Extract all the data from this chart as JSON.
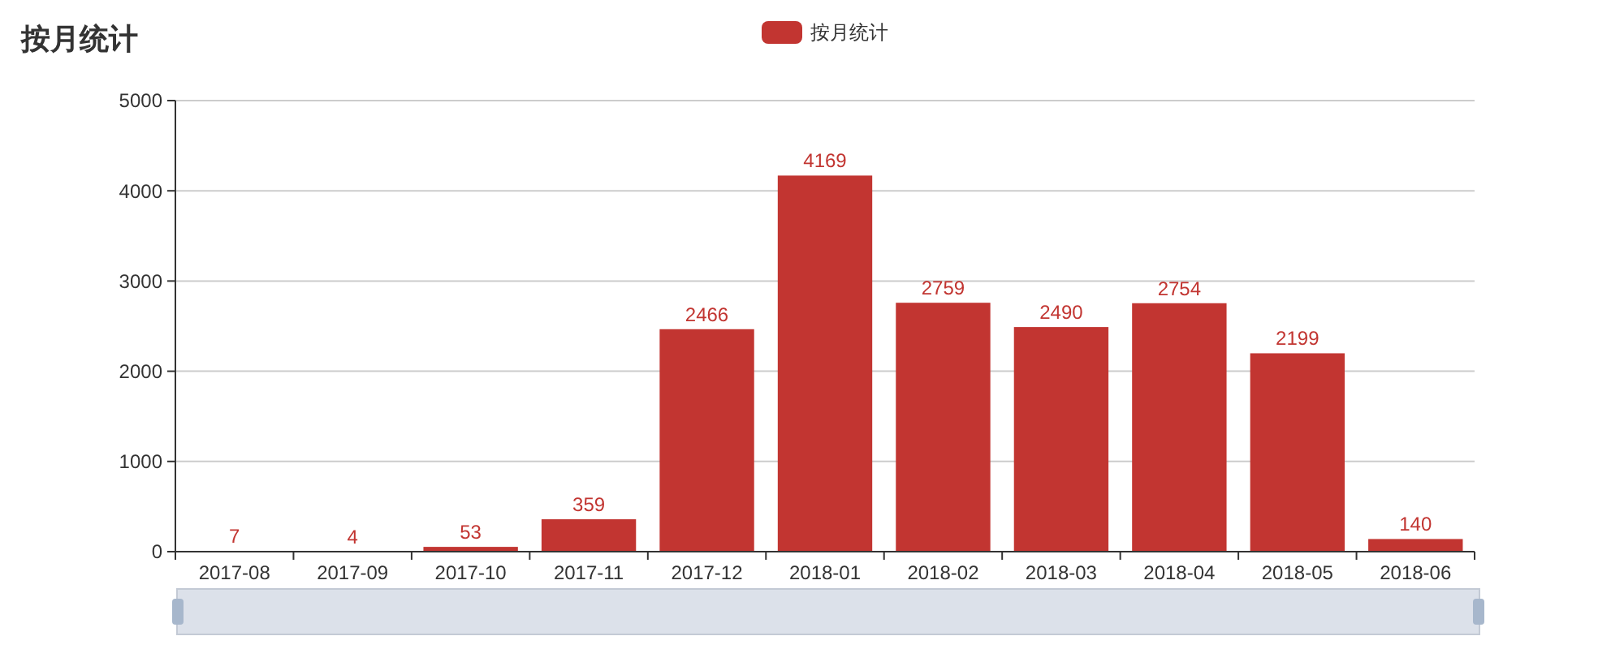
{
  "chart_data": {
    "type": "bar",
    "title": "按月统计",
    "categories": [
      "2017-08",
      "2017-09",
      "2017-10",
      "2017-11",
      "2017-12",
      "2018-01",
      "2018-02",
      "2018-03",
      "2018-04",
      "2018-05",
      "2018-06"
    ],
    "series": [
      {
        "name": "按月统计",
        "color": "#c23531",
        "values": [
          7,
          4,
          53,
          359,
          2466,
          4169,
          2759,
          2490,
          2754,
          2199,
          140
        ]
      }
    ],
    "ylim": [
      0,
      5000
    ],
    "yticks": [
      0,
      1000,
      2000,
      3000,
      4000,
      5000
    ],
    "grid": "y",
    "legend": "top",
    "data_labels": true
  }
}
